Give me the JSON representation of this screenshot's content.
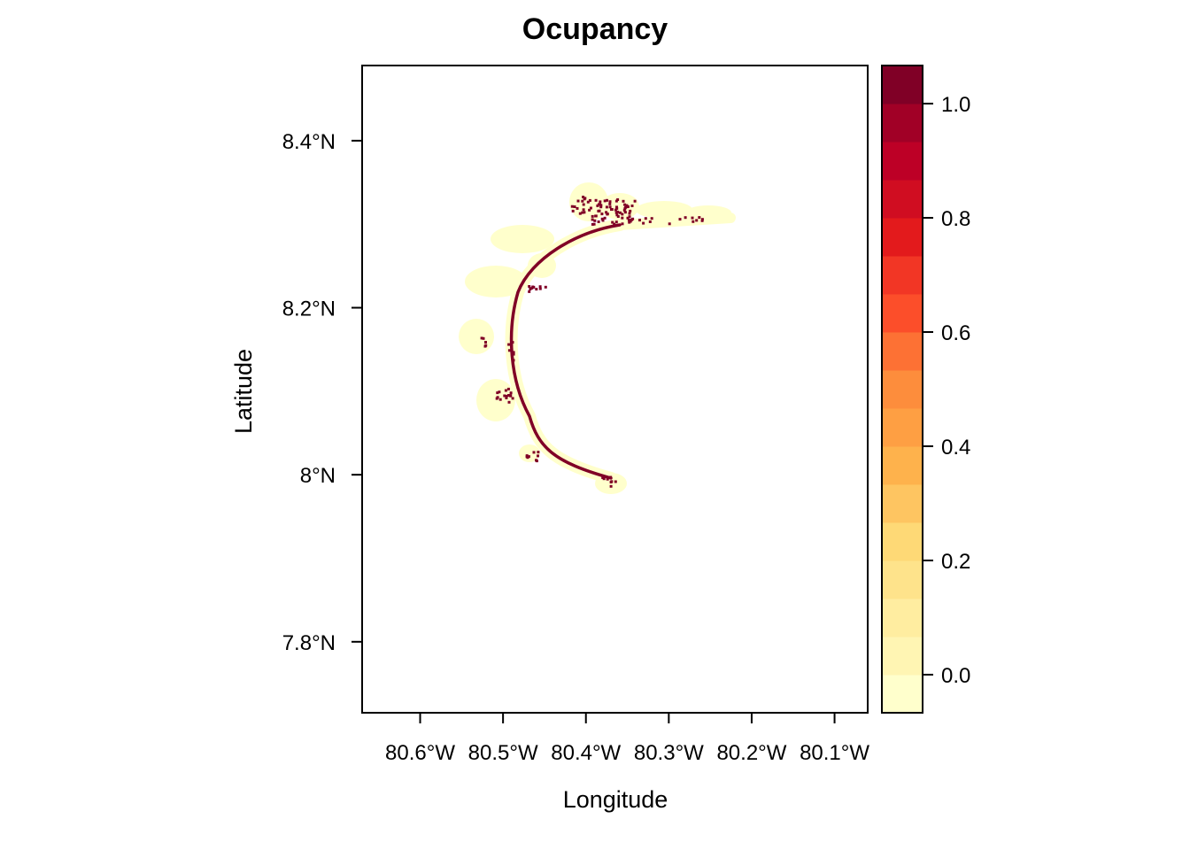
{
  "title": "Ocupancy",
  "xlabel": "Longitude",
  "ylabel": "Latitude",
  "x_ticks": [
    {
      "value": -80.6,
      "label": "80.6°W"
    },
    {
      "value": -80.5,
      "label": "80.5°W"
    },
    {
      "value": -80.4,
      "label": "80.4°W"
    },
    {
      "value": -80.3,
      "label": "80.3°W"
    },
    {
      "value": -80.2,
      "label": "80.2°W"
    },
    {
      "value": -80.1,
      "label": "80.1°W"
    }
  ],
  "y_ticks": [
    {
      "value": 8.4,
      "label": "8.4°N"
    },
    {
      "value": 8.2,
      "label": "8.2°N"
    },
    {
      "value": 8.0,
      "label": "8°N"
    },
    {
      "value": 7.8,
      "label": "7.8°N"
    }
  ],
  "xlim": [
    -80.67,
    -80.06
  ],
  "ylim": [
    7.715,
    8.49
  ],
  "colorbar": {
    "range": [
      -0.0667,
      1.0667
    ],
    "colors": [
      "#FFFFCC",
      "#FFF5B3",
      "#FFEDA0",
      "#FEE38B",
      "#FED976",
      "#FEC561",
      "#FEB24C",
      "#FE9F43",
      "#FD8D3C",
      "#FD7134",
      "#FC4E2A",
      "#F23625",
      "#E31A1C",
      "#D00D21",
      "#BD0026",
      "#A10026",
      "#800026"
    ],
    "ticks": [
      {
        "value": 1.0,
        "label": "1.0"
      },
      {
        "value": 0.8,
        "label": "0.8"
      },
      {
        "value": 0.6,
        "label": "0.6"
      },
      {
        "value": 0.4,
        "label": "0.4"
      },
      {
        "value": 0.2,
        "label": "0.2"
      },
      {
        "value": 0.0,
        "label": "0.0"
      }
    ]
  },
  "colors": {
    "low_occupancy": "#FFFFCC",
    "high_occupancy": "#800026"
  }
}
